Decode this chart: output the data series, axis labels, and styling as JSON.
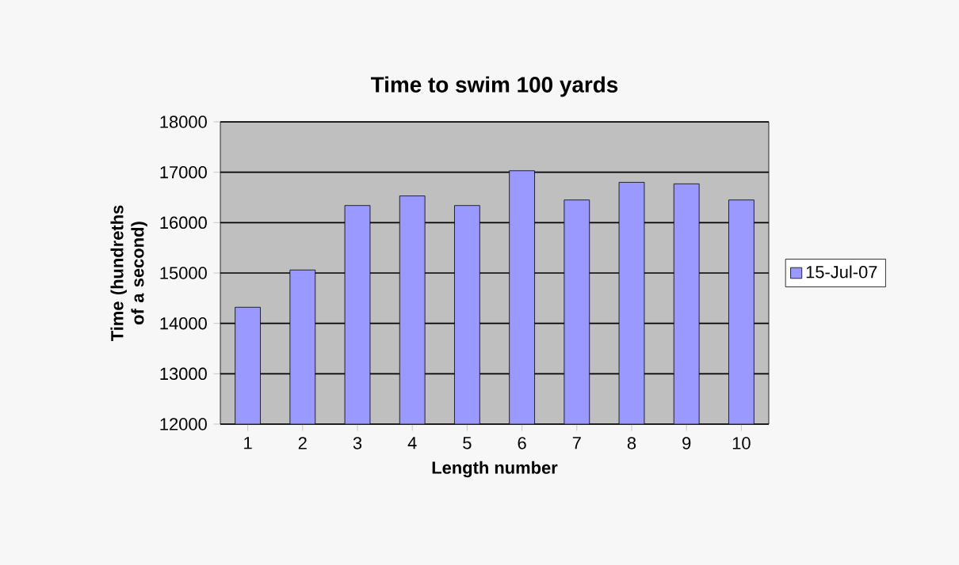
{
  "chart_data": {
    "type": "bar",
    "title": "Time to swim 100 yards",
    "xlabel": "Length number",
    "ylabel": "Time (hundreths of a second)",
    "categories": [
      "1",
      "2",
      "3",
      "4",
      "5",
      "6",
      "7",
      "8",
      "9",
      "10"
    ],
    "series": [
      {
        "name": "15-Jul-07",
        "color": "#9999ff",
        "values": [
          14320,
          15060,
          16340,
          16530,
          16340,
          17030,
          16450,
          16800,
          16770,
          16450
        ]
      }
    ],
    "ylim": [
      12000,
      18000
    ],
    "yticks": [
      12000,
      13000,
      14000,
      15000,
      16000,
      17000,
      18000
    ],
    "grid": "y",
    "legend": "right"
  }
}
